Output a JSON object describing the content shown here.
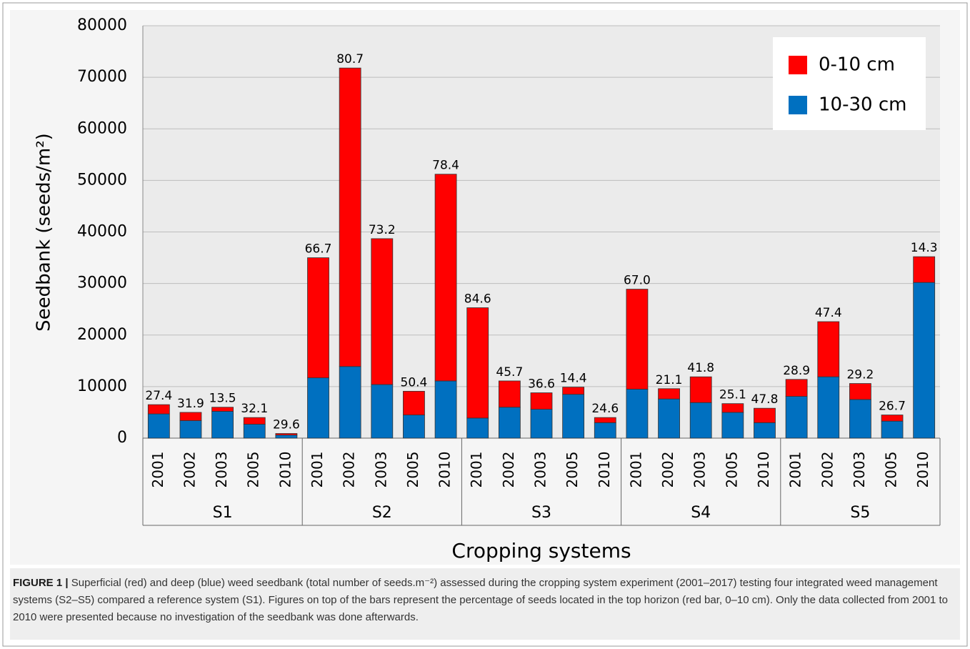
{
  "chart_data": {
    "type": "stacked-bar",
    "y_label": "Seedbank (seeds/m²)",
    "x_label": "Cropping systems",
    "groups": [
      "S1",
      "S2",
      "S3",
      "S4",
      "S5"
    ],
    "categories": [
      "2001",
      "2002",
      "2003",
      "2005",
      "2010",
      "2001",
      "2002",
      "2003",
      "2005",
      "2010",
      "2001",
      "2002",
      "2003",
      "2005",
      "2010",
      "2001",
      "2002",
      "2003",
      "2005",
      "2010",
      "2001",
      "2002",
      "2003",
      "2005",
      "2010"
    ],
    "series": [
      {
        "name": "10-30 cm",
        "color": "#0070c0",
        "values": [
          4700,
          3400,
          5200,
          2700,
          600,
          11700,
          13900,
          10400,
          4500,
          11100,
          3900,
          6000,
          5600,
          8500,
          3000,
          9500,
          7600,
          6900,
          5000,
          3000,
          8100,
          11900,
          7500,
          3300,
          30200
        ]
      },
      {
        "name": "0-10 cm",
        "color": "#ff0000",
        "values": [
          1800,
          1600,
          800,
          1300,
          300,
          23300,
          57900,
          28300,
          4600,
          40100,
          21400,
          5100,
          3200,
          1400,
          1000,
          19400,
          2000,
          5000,
          1700,
          2800,
          3300,
          10700,
          3100,
          1200,
          5000
        ]
      }
    ],
    "bar_labels": [
      "27.4",
      "31.9",
      "13.5",
      "32.1",
      "29.6",
      "66.7",
      "80.7",
      "73.2",
      "50.4",
      "78.4",
      "84.6",
      "45.7",
      "36.6",
      "14.4",
      "24.6",
      "67.0",
      "21.1",
      "41.8",
      "25.1",
      "47.8",
      "28.9",
      "47.4",
      "29.2",
      "26.7",
      "14.3"
    ],
    "ylim": [
      0,
      80000
    ],
    "yticks": [
      0,
      10000,
      20000,
      30000,
      40000,
      50000,
      60000,
      70000,
      80000
    ],
    "grid": true,
    "legend": "top-right"
  },
  "caption": {
    "label": "FIGURE 1 |",
    "text": "Superficial (red) and deep (blue) weed seedbank (total number of seeds.m⁻²) assessed during the cropping system experiment (2001–2017) testing four integrated weed management systems (S2–S5) compared a reference system (S1). Figures on top of the bars represent the percentage of seeds located in the top horizon (red bar, 0–10 cm). Only the data collected from 2001 to 2010 were presented because no investigation of the seedbank was done afterwards."
  }
}
